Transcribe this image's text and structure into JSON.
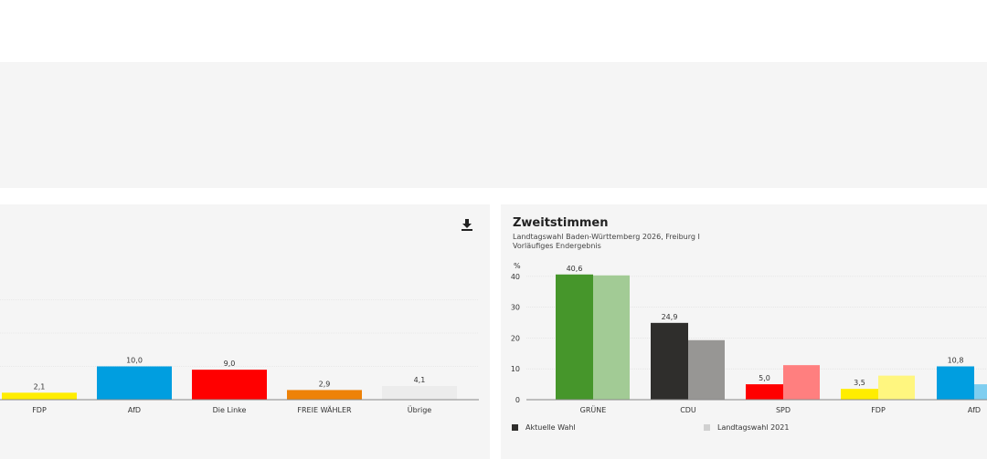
{
  "chart_data": [
    {
      "type": "bar",
      "title": "",
      "categories": [
        "FDP",
        "AfD",
        "Die Linke",
        "FREIE WÄHLER",
        "Übrige"
      ],
      "series": [
        {
          "values": [
            2.1,
            10.0,
            9.0,
            2.9,
            4.1
          ]
        }
      ],
      "labels": [
        "2,1",
        "10,0",
        "9,0",
        "2,9",
        "4,1"
      ],
      "colors": [
        "#ffed00",
        "#009ee0",
        "#ff0000",
        "#ee8208",
        "#ececec"
      ],
      "ylim": [
        0,
        45
      ],
      "grid": true,
      "download_icon": "download-icon"
    },
    {
      "type": "bar",
      "title": "Zweitstimmen",
      "subtitle_line1": "Landtagswahl Baden-Württemberg 2026, Freiburg I",
      "subtitle_line2": "Vorläufiges Endergebnis",
      "ylabel": "%",
      "yticks": [
        "0",
        "10",
        "20",
        "30",
        "40"
      ],
      "ylim": [
        0,
        43
      ],
      "grid": true,
      "categories": [
        "GRÜNE",
        "CDU",
        "SPD",
        "FDP",
        "AfD"
      ],
      "series": [
        {
          "name": "Aktuelle Wahl",
          "values": [
            40.6,
            24.9,
            5.0,
            3.5,
            10.8
          ],
          "labels": [
            "40,6",
            "24,9",
            "5,0",
            "3,5",
            "10,8"
          ],
          "colors": [
            "#46962b",
            "#2f2e2c",
            "#ff0000",
            "#ffed00",
            "#009ee0"
          ]
        },
        {
          "name": "Landtagswahl 2021",
          "values": [
            40.3,
            19.3,
            11.2,
            7.8,
            5.0
          ],
          "colors": [
            "#a2cb95",
            "#979694",
            "#ff7f7f",
            "#fff67f",
            "#7fcef0"
          ]
        }
      ],
      "legend": {
        "current_color": "#2f2e2c",
        "previous_color": "#d0d0d0"
      }
    }
  ]
}
